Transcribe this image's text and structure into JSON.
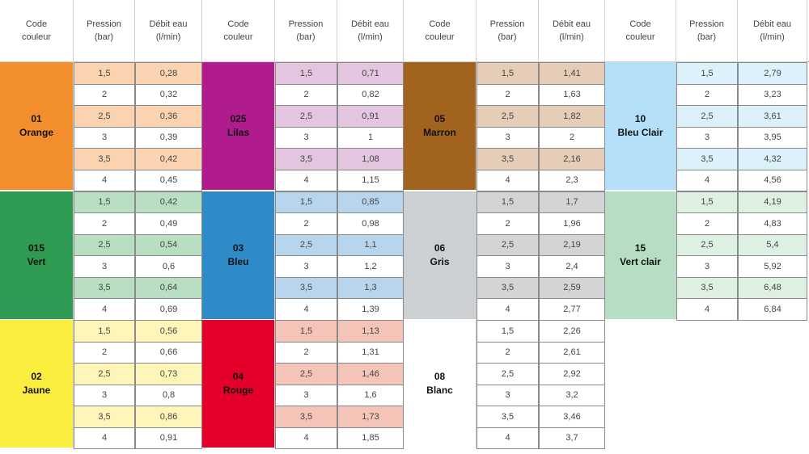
{
  "table": {
    "headers": {
      "code": "Code\ncouleur",
      "pression": "Pression\n(bar)",
      "debit": "Débit eau\n(l/min)"
    },
    "columns": [
      {
        "groups": [
          {
            "code": "01",
            "name": "Orange",
            "color": "#F28E2B",
            "tint": "#FBD3B0",
            "rows": [
              [
                "1,5",
                "0,28"
              ],
              [
                "2",
                "0,32"
              ],
              [
                "2,5",
                "0,36"
              ],
              [
                "3",
                "0,39"
              ],
              [
                "3,5",
                "0,42"
              ],
              [
                "4",
                "0,45"
              ]
            ]
          },
          {
            "code": "015",
            "name": "Vert",
            "color": "#2E9A52",
            "tint": "#B9DFC3",
            "rows": [
              [
                "1,5",
                "0,42"
              ],
              [
                "2",
                "0,49"
              ],
              [
                "2,5",
                "0,54"
              ],
              [
                "3",
                "0,6"
              ],
              [
                "3,5",
                "0,64"
              ],
              [
                "4",
                "0,69"
              ]
            ]
          },
          {
            "code": "02",
            "name": "Jaune",
            "color": "#FBEE3E",
            "tint": "#FDF6B8",
            "rows": [
              [
                "1,5",
                "0,56"
              ],
              [
                "2",
                "0,66"
              ],
              [
                "2,5",
                "0,73"
              ],
              [
                "3",
                "0,8"
              ],
              [
                "3,5",
                "0,86"
              ],
              [
                "4",
                "0,91"
              ]
            ]
          }
        ]
      },
      {
        "groups": [
          {
            "code": "025",
            "name": "Lilas",
            "color": "#B01B8E",
            "tint": "#E3C5E0",
            "rows": [
              [
                "1,5",
                "0,71"
              ],
              [
                "2",
                "0,82"
              ],
              [
                "2,5",
                "0,91"
              ],
              [
                "3",
                "1"
              ],
              [
                "3,5",
                "1,08"
              ],
              [
                "4",
                "1,15"
              ]
            ]
          },
          {
            "code": "03",
            "name": "Bleu",
            "color": "#2E8BC8",
            "tint": "#B7D6EE",
            "rows": [
              [
                "1,5",
                "0,85"
              ],
              [
                "2",
                "0,98"
              ],
              [
                "2,5",
                "1,1"
              ],
              [
                "3",
                "1,2"
              ],
              [
                "3,5",
                "1,3"
              ],
              [
                "4",
                "1,39"
              ]
            ]
          },
          {
            "code": "04",
            "name": "Rouge",
            "color": "#E3002B",
            "tint": "#F5C4B8",
            "rows": [
              [
                "1,5",
                "1,13"
              ],
              [
                "2",
                "1,31"
              ],
              [
                "2,5",
                "1,46"
              ],
              [
                "3",
                "1,6"
              ],
              [
                "3,5",
                "1,73"
              ],
              [
                "4",
                "1,85"
              ]
            ]
          }
        ]
      },
      {
        "groups": [
          {
            "code": "05",
            "name": "Marron",
            "color": "#A2631F",
            "tint": "#E5CDB7",
            "rows": [
              [
                "1,5",
                "1,41"
              ],
              [
                "2",
                "1,63"
              ],
              [
                "2,5",
                "1,82"
              ],
              [
                "3",
                "2"
              ],
              [
                "3,5",
                "2,16"
              ],
              [
                "4",
                "2,3"
              ]
            ]
          },
          {
            "code": "06",
            "name": "Gris",
            "color": "#CDD0D2",
            "tint": "#D2D4D6",
            "rows": [
              [
                "1,5",
                "1,7"
              ],
              [
                "2",
                "1,96"
              ],
              [
                "2,5",
                "2,19"
              ],
              [
                "3",
                "2,4"
              ],
              [
                "3,5",
                "2,59"
              ],
              [
                "4",
                "2,77"
              ]
            ]
          },
          {
            "code": "08",
            "name": "Blanc",
            "color": "#FFFFFF",
            "tint": "#FFFFFF",
            "rows": [
              [
                "1,5",
                "2,26"
              ],
              [
                "2",
                "2,61"
              ],
              [
                "2,5",
                "2,92"
              ],
              [
                "3",
                "3,2"
              ],
              [
                "3,5",
                "3,46"
              ],
              [
                "4",
                "3,7"
              ]
            ]
          }
        ]
      },
      {
        "groups": [
          {
            "code": "10",
            "name": "Bleu Clair",
            "color": "#B3E0F8",
            "tint": "#DDF1FB",
            "rows": [
              [
                "1,5",
                "2,79"
              ],
              [
                "2",
                "3,23"
              ],
              [
                "2,5",
                "3,61"
              ],
              [
                "3",
                "3,95"
              ],
              [
                "3,5",
                "4,32"
              ],
              [
                "4",
                "4,56"
              ]
            ]
          },
          {
            "code": "15",
            "name": "Vert clair",
            "color": "#B6DEC3",
            "tint": "#DDF0E2",
            "rows": [
              [
                "1,5",
                "4,19"
              ],
              [
                "2",
                "4,83"
              ],
              [
                "2,5",
                "5,4"
              ],
              [
                "3",
                "5,92"
              ],
              [
                "3,5",
                "6,48"
              ],
              [
                "4",
                "6,84"
              ]
            ]
          }
        ]
      }
    ]
  }
}
